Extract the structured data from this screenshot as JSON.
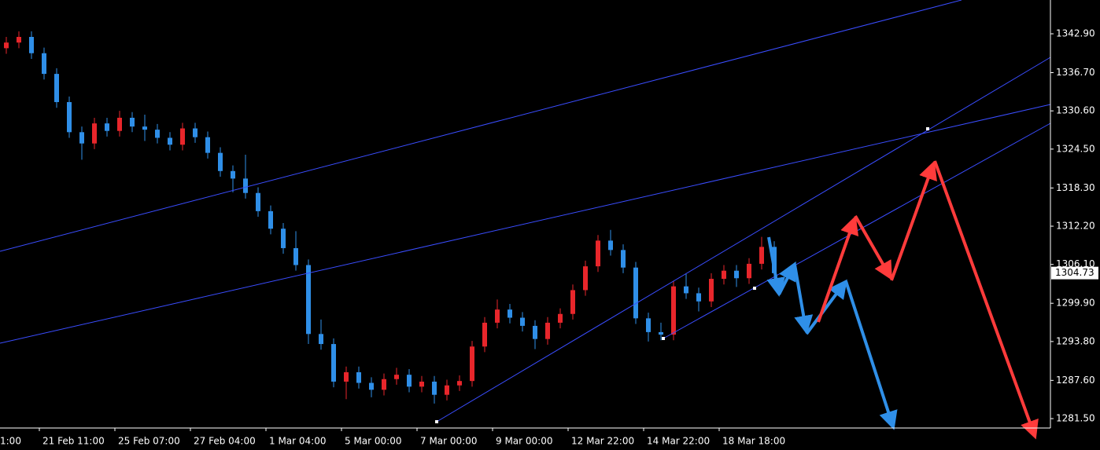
{
  "chart_data": {
    "type": "candlestick",
    "open": [
      1340.6,
      1341.5,
      1342.4,
      1339.8,
      1336.5,
      1332.0,
      1327.2,
      1325.4,
      1328.6,
      1327.4,
      1329.5,
      1328.1,
      1327.6,
      1326.3,
      1325.2,
      1327.8,
      1326.4,
      1323.9,
      1321.0,
      1319.8,
      1317.5,
      1314.6,
      1311.8,
      1308.7,
      1306.0,
      1295.0,
      1293.4,
      1287.4,
      1288.9,
      1287.2,
      1286.1,
      1287.8,
      1288.5,
      1286.6,
      1287.4,
      1285.3,
      1286.8,
      1287.5,
      1293.0,
      1296.8,
      1298.9,
      1297.6,
      1296.3,
      1294.2,
      1296.8,
      1298.2,
      1302.0,
      1305.8,
      1309.9,
      1308.4,
      1305.6,
      1297.5,
      1295.3,
      1294.9,
      1302.6,
      1301.5,
      1300.2,
      1303.8,
      1305.1,
      1303.9,
      1306.2,
      1308.9
    ],
    "high": [
      1342.4,
      1343.3,
      1343.3,
      1340.7,
      1337.4,
      1332.9,
      1328.1,
      1329.5,
      1329.5,
      1330.6,
      1330.4,
      1330.0,
      1328.5,
      1327.2,
      1328.7,
      1328.7,
      1327.3,
      1324.8,
      1321.9,
      1323.6,
      1318.4,
      1315.5,
      1312.7,
      1311.4,
      1306.9,
      1297.3,
      1294.3,
      1289.8,
      1289.8,
      1288.1,
      1288.7,
      1289.6,
      1289.4,
      1288.3,
      1288.3,
      1287.7,
      1288.4,
      1293.9,
      1297.7,
      1300.5,
      1299.8,
      1298.5,
      1297.2,
      1297.7,
      1299.1,
      1302.9,
      1306.7,
      1310.8,
      1311.6,
      1309.3,
      1306.5,
      1298.4,
      1296.8,
      1303.5,
      1304.6,
      1302.4,
      1304.7,
      1306.0,
      1306.0,
      1307.1,
      1310.5,
      1309.8
    ],
    "low": [
      1339.7,
      1340.6,
      1338.9,
      1335.6,
      1331.1,
      1326.3,
      1322.8,
      1324.5,
      1326.5,
      1326.5,
      1327.2,
      1325.8,
      1325.4,
      1324.3,
      1324.3,
      1325.5,
      1323.0,
      1320.1,
      1317.6,
      1316.6,
      1313.7,
      1310.9,
      1307.8,
      1305.1,
      1293.4,
      1292.5,
      1286.5,
      1284.6,
      1286.3,
      1284.9,
      1285.2,
      1286.9,
      1285.7,
      1285.7,
      1283.9,
      1284.4,
      1285.9,
      1286.6,
      1292.1,
      1295.9,
      1296.7,
      1295.4,
      1292.6,
      1293.3,
      1295.9,
      1297.3,
      1301.1,
      1304.9,
      1307.5,
      1304.7,
      1296.6,
      1293.8,
      1294.0,
      1294.0,
      1300.6,
      1298.6,
      1299.3,
      1302.9,
      1302.5,
      1303.0,
      1305.3,
      1303.8
    ],
    "close": [
      1341.5,
      1342.4,
      1339.8,
      1336.5,
      1332.0,
      1327.2,
      1325.4,
      1328.6,
      1327.4,
      1329.5,
      1328.1,
      1327.6,
      1326.3,
      1325.2,
      1327.8,
      1326.4,
      1323.9,
      1321.0,
      1319.8,
      1317.5,
      1314.6,
      1311.8,
      1308.7,
      1306.0,
      1295.0,
      1293.4,
      1287.4,
      1288.9,
      1287.2,
      1286.1,
      1287.8,
      1288.5,
      1286.6,
      1287.4,
      1285.3,
      1286.8,
      1287.5,
      1293.0,
      1296.8,
      1298.9,
      1297.6,
      1296.3,
      1294.2,
      1296.8,
      1298.2,
      1302.0,
      1305.8,
      1309.9,
      1308.4,
      1305.6,
      1297.5,
      1295.3,
      1294.9,
      1302.6,
      1301.5,
      1300.2,
      1303.8,
      1305.1,
      1303.9,
      1306.2,
      1308.9,
      1304.7
    ],
    "up_color": "#e8262b",
    "down_color": "#2f8fe8",
    "x_labels": [
      "1:00",
      "21 Feb 11:00",
      "25 Feb 07:00",
      "27 Feb 04:00",
      "1 Mar 04:00",
      "5 Mar 00:00",
      "7 Mar 00:00",
      "9 Mar 00:00",
      "12 Mar 22:00",
      "14 Mar 22:00",
      "18 Mar 18:00"
    ],
    "ylim": [
      1280.0,
      1348.29
    ],
    "yticks": [
      {
        "value": 1342.9,
        "label": "1342.90"
      },
      {
        "value": 1336.7,
        "label": "1336.70"
      },
      {
        "value": 1330.6,
        "label": "1330.60"
      },
      {
        "value": 1324.5,
        "label": "1324.50"
      },
      {
        "value": 1318.3,
        "label": "1318.30"
      },
      {
        "value": 1312.2,
        "label": "1312.20"
      },
      {
        "value": 1306.1,
        "label": "1306.10"
      },
      {
        "value": 1299.9,
        "label": "1299.90"
      },
      {
        "value": 1293.8,
        "label": "1293.80"
      },
      {
        "value": 1287.6,
        "label": "1287.60"
      },
      {
        "value": 1281.5,
        "label": "1281.50"
      }
    ],
    "last_price": 1304.73
  }
}
